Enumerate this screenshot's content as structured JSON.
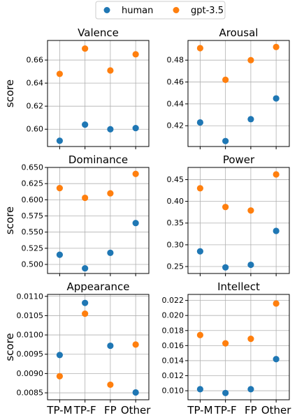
{
  "legend": [
    {
      "name": "human",
      "color": "#1f77b4"
    },
    {
      "name": "gpt-3.5",
      "color": "#ff7f0e"
    }
  ],
  "chart_data": {
    "type": "scatter",
    "layout": "3x2 grid",
    "categories": [
      "TP-M",
      "TP-F",
      "FP",
      "Other"
    ],
    "ylabel": "score",
    "grid": true,
    "legend_position": "top-center",
    "panels": [
      {
        "title": "Valence",
        "ylim": [
          0.585,
          0.677
        ],
        "yticks": [
          0.6,
          0.62,
          0.64,
          0.66
        ],
        "tick_decimals": 2,
        "series": [
          {
            "name": "human",
            "values": [
              0.59,
              0.604,
              0.6,
              0.601
            ]
          },
          {
            "name": "gpt-3.5",
            "values": [
              0.648,
              0.67,
              0.651,
              0.665
            ]
          }
        ]
      },
      {
        "title": "Arousal",
        "ylim": [
          0.401,
          0.498
        ],
        "yticks": [
          0.42,
          0.44,
          0.46,
          0.48
        ],
        "tick_decimals": 2,
        "series": [
          {
            "name": "human",
            "values": [
              0.423,
              0.406,
              0.426,
              0.445
            ]
          },
          {
            "name": "gpt-3.5",
            "values": [
              0.491,
              0.462,
              0.48,
              0.492
            ]
          }
        ]
      },
      {
        "title": "Dominance",
        "ylim": [
          0.486,
          0.65
        ],
        "yticks": [
          0.5,
          0.525,
          0.55,
          0.575,
          0.6,
          0.625,
          0.65
        ],
        "tick_decimals": 3,
        "series": [
          {
            "name": "human",
            "values": [
              0.515,
              0.494,
              0.518,
              0.564
            ]
          },
          {
            "name": "gpt-3.5",
            "values": [
              0.618,
              0.603,
              0.61,
              0.64
            ]
          }
        ]
      },
      {
        "title": "Power",
        "ylim": [
          0.234,
          0.478
        ],
        "yticks": [
          0.25,
          0.3,
          0.35,
          0.4,
          0.45
        ],
        "tick_decimals": 2,
        "series": [
          {
            "name": "human",
            "values": [
              0.285,
              0.248,
              0.254,
              0.332
            ]
          },
          {
            "name": "gpt-3.5",
            "values": [
              0.43,
              0.387,
              0.379,
              0.462
            ]
          }
        ]
      },
      {
        "title": "Appearance",
        "ylim": [
          0.00832,
          0.01105
        ],
        "yticks": [
          0.0085,
          0.009,
          0.0095,
          0.01,
          0.0105,
          0.011
        ],
        "tick_decimals": 4,
        "series": [
          {
            "name": "human",
            "values": [
              0.00948,
              0.01083,
              0.00972,
              0.00851
            ]
          },
          {
            "name": "gpt-3.5",
            "values": [
              0.00893,
              0.01055,
              0.00871,
              0.00975
            ]
          }
        ]
      },
      {
        "title": "Intellect",
        "ylim": [
          0.0088,
          0.0228
        ],
        "yticks": [
          0.01,
          0.012,
          0.014,
          0.016,
          0.018,
          0.02,
          0.022
        ],
        "tick_decimals": 3,
        "series": [
          {
            "name": "human",
            "values": [
              0.0102,
              0.0097,
              0.0102,
              0.0142
            ]
          },
          {
            "name": "gpt-3.5",
            "values": [
              0.0174,
              0.0163,
              0.0169,
              0.0216
            ]
          }
        ]
      }
    ]
  }
}
